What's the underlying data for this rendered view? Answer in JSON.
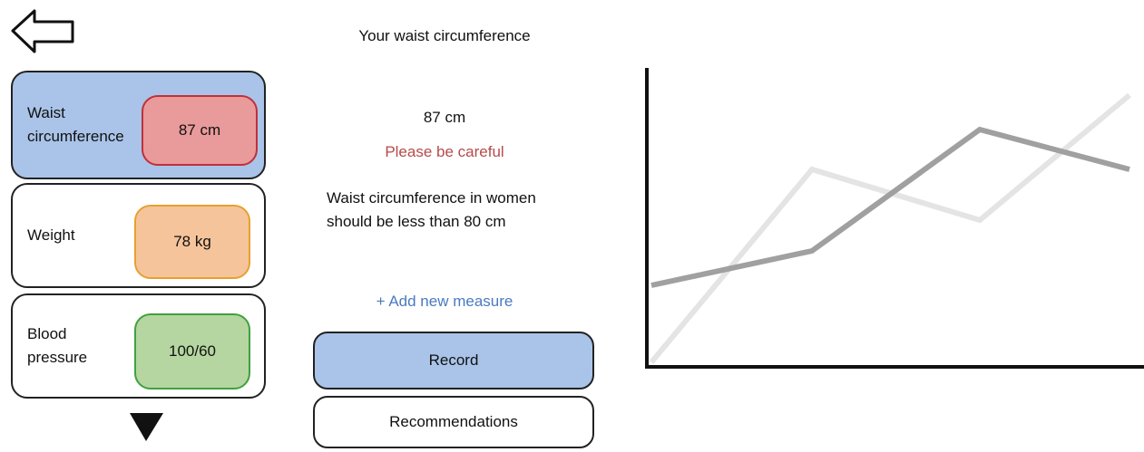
{
  "header": {
    "title": "Your waist circumference"
  },
  "cards": [
    {
      "label": "Waist circumference",
      "value": "87 cm"
    },
    {
      "label": "Weight",
      "value": "78 kg"
    },
    {
      "label": "Blood pressure",
      "value": "100/60"
    }
  ],
  "detail": {
    "value": "87 cm",
    "warning": "Please be careful",
    "note": "Waist circumference in women should be less than 80 cm",
    "add_link": "+ Add new measure"
  },
  "buttons": [
    "Record",
    "Recommendations"
  ]
}
